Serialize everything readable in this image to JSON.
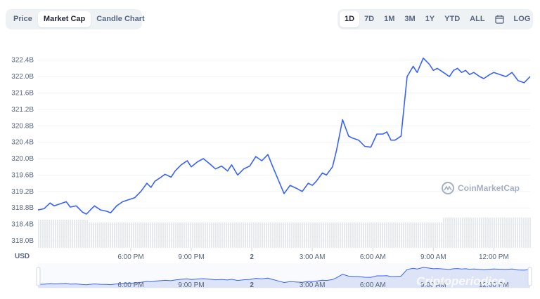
{
  "tabs": {
    "price": "Price",
    "market_cap": "Market Cap",
    "candle": "Candle Chart",
    "active": "Market Cap"
  },
  "ranges": {
    "items": [
      "1D",
      "7D",
      "1M",
      "3M",
      "1Y",
      "YTD",
      "ALL"
    ],
    "active": "1D",
    "calendar_icon": "calendar-icon",
    "log_label": "LOG"
  },
  "watermark": {
    "label": "CoinMarketCap",
    "overlay": "Criptoperiodico"
  },
  "colors": {
    "line": "#3861fb",
    "volume": "#e6e9ee",
    "grid": "#eff2f5",
    "navigator_fill": "#dde4f7"
  },
  "chart_data": {
    "type": "line",
    "y_unit_label": "USD",
    "ylim": [
      318.0,
      322.6
    ],
    "y_ticks": [
      "322.4B",
      "322.0B",
      "321.6B",
      "321.2B",
      "320.8B",
      "320.4B",
      "320.0B",
      "319.6B",
      "319.2B",
      "318.8B",
      "318.4B",
      "318.0B"
    ],
    "x_labels": [
      "6:00 PM",
      "9:00 PM",
      "2",
      "3:00 AM",
      "6:00 AM",
      "9:00 AM",
      "12:00 PM"
    ],
    "x_label_hours": [
      3,
      6,
      9,
      12,
      15,
      18,
      21
    ],
    "x_hours_range": [
      -1.6,
      22.8
    ],
    "grid": true,
    "series": [
      {
        "x": [
          -1.6,
          -1.3,
          -1.0,
          -0.8,
          -0.5,
          -0.2,
          0.0,
          0.3,
          0.6,
          0.8,
          1.0,
          1.2,
          1.5,
          1.8,
          2.0,
          2.3,
          2.6,
          2.9,
          3.2,
          3.5,
          3.8,
          4.0,
          4.2,
          4.5,
          4.7,
          5.0,
          5.2,
          5.5,
          5.8,
          6.0,
          6.3,
          6.6,
          6.9,
          7.2,
          7.5,
          7.8,
          8.0,
          8.3,
          8.6,
          8.9,
          9.2,
          9.5,
          9.8,
          10.0,
          10.3,
          10.6,
          10.9,
          11.2,
          11.5,
          11.8,
          12.0,
          12.2,
          12.5,
          12.7,
          13.0,
          13.2,
          13.5,
          13.8,
          14.0,
          14.3,
          14.6,
          14.9,
          15.2,
          15.5,
          15.7,
          15.9,
          16.1,
          16.4,
          16.7,
          17.0,
          17.2,
          17.5,
          17.8,
          18.0,
          18.2,
          18.5,
          18.8,
          19.0,
          19.2,
          19.4,
          19.6,
          19.8,
          20.0,
          20.3,
          20.5,
          20.8,
          21.0,
          21.3,
          21.6,
          21.9,
          22.2,
          22.5,
          22.8
        ],
        "y": [
          318.75,
          318.78,
          318.92,
          318.85,
          318.9,
          318.95,
          318.82,
          318.85,
          318.7,
          318.65,
          318.75,
          318.85,
          318.75,
          318.72,
          318.68,
          318.85,
          318.95,
          319.0,
          319.05,
          319.2,
          319.4,
          319.3,
          319.45,
          319.55,
          319.62,
          319.55,
          319.7,
          319.85,
          319.95,
          319.8,
          319.92,
          320.0,
          319.88,
          319.75,
          319.82,
          319.7,
          319.85,
          319.6,
          319.75,
          319.82,
          320.05,
          319.95,
          320.1,
          319.85,
          319.5,
          319.15,
          319.35,
          319.28,
          319.2,
          319.4,
          319.35,
          319.45,
          319.65,
          319.6,
          319.8,
          320.2,
          320.95,
          320.55,
          320.5,
          320.45,
          320.3,
          320.28,
          320.6,
          320.6,
          320.65,
          320.45,
          320.45,
          320.55,
          322.0,
          322.25,
          322.1,
          322.45,
          322.3,
          322.15,
          322.2,
          322.1,
          322.0,
          322.15,
          322.2,
          322.1,
          322.15,
          322.05,
          322.1,
          322.0,
          321.95,
          322.05,
          322.1,
          322.05,
          322.0,
          322.1,
          321.9,
          321.85,
          322.0
        ]
      }
    ]
  }
}
